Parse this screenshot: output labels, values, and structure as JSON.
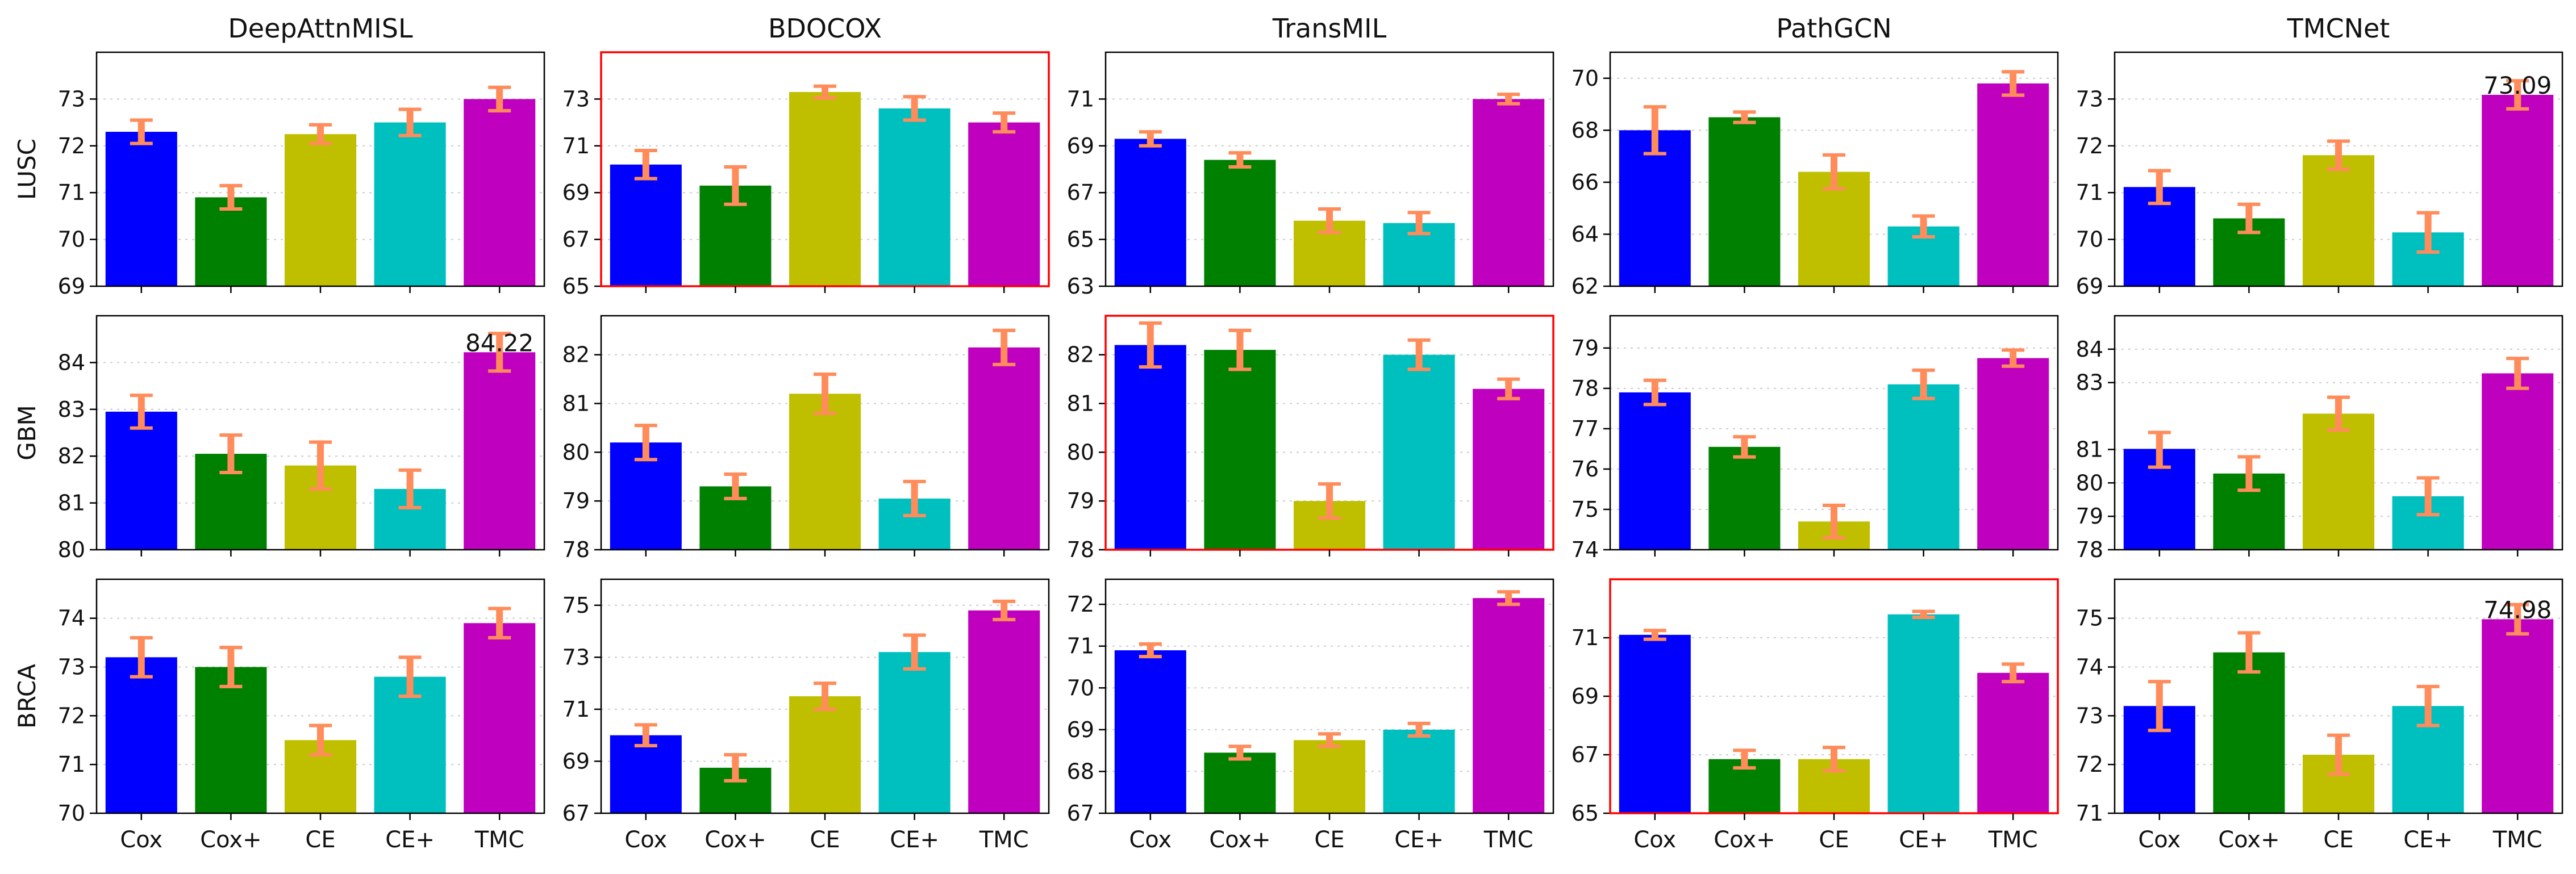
{
  "chart_data": {
    "type": "bar",
    "columns": [
      "DeepAttnMISL",
      "BDOCOX",
      "TransMIL",
      "PathGCN",
      "TMCNet"
    ],
    "rows": [
      "LUSC",
      "GBM",
      "BRCA"
    ],
    "categories": [
      "Cox",
      "Cox+",
      "CE",
      "CE+",
      "TMC"
    ],
    "colors": [
      "#0000ff",
      "#008000",
      "#bfbf00",
      "#00bfbf",
      "#bf00bf"
    ],
    "error_color": "#ff8c5a",
    "highlight_color": "#ff0000",
    "grid": "horizontal-dotted",
    "panels": [
      {
        "row": 0,
        "col": 0,
        "ylim": [
          69,
          74
        ],
        "yticks": [
          "69",
          "70",
          "71",
          "72",
          "73"
        ],
        "values": [
          72.3,
          70.9,
          72.25,
          72.5,
          73.0
        ],
        "errors": [
          0.25,
          0.25,
          0.2,
          0.28,
          0.25
        ]
      },
      {
        "row": 0,
        "col": 1,
        "ylim": [
          65,
          75
        ],
        "yticks": [
          "65",
          "67",
          "69",
          "71",
          "73"
        ],
        "values": [
          70.2,
          69.3,
          73.3,
          72.6,
          72.0
        ],
        "errors": [
          0.6,
          0.8,
          0.25,
          0.5,
          0.4
        ],
        "highlight": true
      },
      {
        "row": 0,
        "col": 2,
        "ylim": [
          63,
          73
        ],
        "yticks": [
          "63",
          "65",
          "67",
          "69",
          "71"
        ],
        "values": [
          69.3,
          68.4,
          65.8,
          65.7,
          71.0
        ],
        "errors": [
          0.3,
          0.3,
          0.5,
          0.45,
          0.2
        ]
      },
      {
        "row": 0,
        "col": 3,
        "ylim": [
          62,
          71
        ],
        "yticks": [
          "62",
          "64",
          "66",
          "68",
          "70"
        ],
        "values": [
          68.0,
          68.5,
          66.4,
          64.3,
          69.8
        ],
        "errors": [
          0.9,
          0.2,
          0.65,
          0.4,
          0.45
        ]
      },
      {
        "row": 0,
        "col": 4,
        "ylim": [
          69,
          74
        ],
        "yticks": [
          "69",
          "70",
          "71",
          "72",
          "73"
        ],
        "values": [
          71.12,
          70.45,
          71.8,
          70.15,
          73.09
        ],
        "errors": [
          0.35,
          0.3,
          0.3,
          0.42,
          0.3
        ],
        "annotation": {
          "index": 4,
          "text": "73.09"
        }
      },
      {
        "row": 1,
        "col": 0,
        "ylim": [
          80,
          85
        ],
        "yticks": [
          "80",
          "81",
          "82",
          "83",
          "84"
        ],
        "values": [
          82.95,
          82.05,
          81.8,
          81.3,
          84.22
        ],
        "errors": [
          0.35,
          0.4,
          0.5,
          0.4,
          0.4
        ],
        "annotation": {
          "index": 4,
          "text": "84.22"
        }
      },
      {
        "row": 1,
        "col": 1,
        "ylim": [
          78,
          82.8
        ],
        "yticks": [
          "78",
          "79",
          "80",
          "81",
          "82"
        ],
        "values": [
          80.2,
          79.3,
          81.2,
          79.05,
          82.15
        ],
        "errors": [
          0.35,
          0.25,
          0.4,
          0.35,
          0.35
        ]
      },
      {
        "row": 1,
        "col": 2,
        "ylim": [
          78,
          82.8
        ],
        "yticks": [
          "78",
          "79",
          "80",
          "81",
          "82"
        ],
        "values": [
          82.2,
          82.1,
          79.0,
          82.0,
          81.3
        ],
        "errors": [
          0.45,
          0.4,
          0.35,
          0.3,
          0.2
        ],
        "highlight": true
      },
      {
        "row": 1,
        "col": 3,
        "ylim": [
          74,
          79.8
        ],
        "yticks": [
          "74",
          "75",
          "76",
          "77",
          "78",
          "79"
        ],
        "values": [
          77.9,
          76.55,
          74.7,
          78.1,
          78.75
        ],
        "errors": [
          0.3,
          0.25,
          0.4,
          0.35,
          0.2
        ]
      },
      {
        "row": 1,
        "col": 4,
        "ylim": [
          78,
          85
        ],
        "yticks": [
          "78",
          "79",
          "80",
          "81",
          "83",
          "84"
        ],
        "ymap": [
          78,
          79,
          80,
          81,
          82.12,
          83.24,
          84.36,
          85.48
        ],
        "values": [
          81.02,
          80.28,
          82.2,
          79.6,
          83.55
        ],
        "errors": [
          0.55,
          0.5,
          0.55,
          0.55,
          0.5
        ]
      },
      {
        "row": 2,
        "col": 0,
        "ylim": [
          70,
          74.8
        ],
        "yticks": [
          "70",
          "71",
          "72",
          "73",
          "74"
        ],
        "values": [
          73.2,
          73.0,
          71.5,
          72.8,
          73.9
        ],
        "errors": [
          0.4,
          0.4,
          0.3,
          0.4,
          0.3
        ]
      },
      {
        "row": 2,
        "col": 1,
        "ylim": [
          67,
          76
        ],
        "yticks": [
          "67",
          "69",
          "71",
          "73",
          "75"
        ],
        "values": [
          70.0,
          68.75,
          71.5,
          73.2,
          74.8
        ],
        "errors": [
          0.4,
          0.5,
          0.5,
          0.65,
          0.35
        ]
      },
      {
        "row": 2,
        "col": 2,
        "ylim": [
          67,
          72.6
        ],
        "yticks": [
          "67",
          "68",
          "69",
          "70",
          "71",
          "72"
        ],
        "values": [
          70.9,
          68.45,
          68.75,
          69.0,
          72.15
        ],
        "errors": [
          0.15,
          0.15,
          0.15,
          0.15,
          0.15
        ]
      },
      {
        "row": 2,
        "col": 3,
        "ylim": [
          65,
          73
        ],
        "yticks": [
          "65",
          "67",
          "69",
          "71"
        ],
        "values": [
          71.1,
          66.85,
          66.85,
          71.8,
          69.8
        ],
        "errors": [
          0.15,
          0.3,
          0.4,
          0.1,
          0.3
        ],
        "highlight": true
      },
      {
        "row": 2,
        "col": 4,
        "ylim": [
          71,
          75.8
        ],
        "yticks": [
          "71",
          "72",
          "73",
          "74",
          "75"
        ],
        "values": [
          73.2,
          74.3,
          72.2,
          73.2,
          74.98
        ],
        "errors": [
          0.5,
          0.4,
          0.4,
          0.4,
          0.3
        ],
        "annotation": {
          "index": 4,
          "text": "74.98"
        }
      }
    ]
  }
}
